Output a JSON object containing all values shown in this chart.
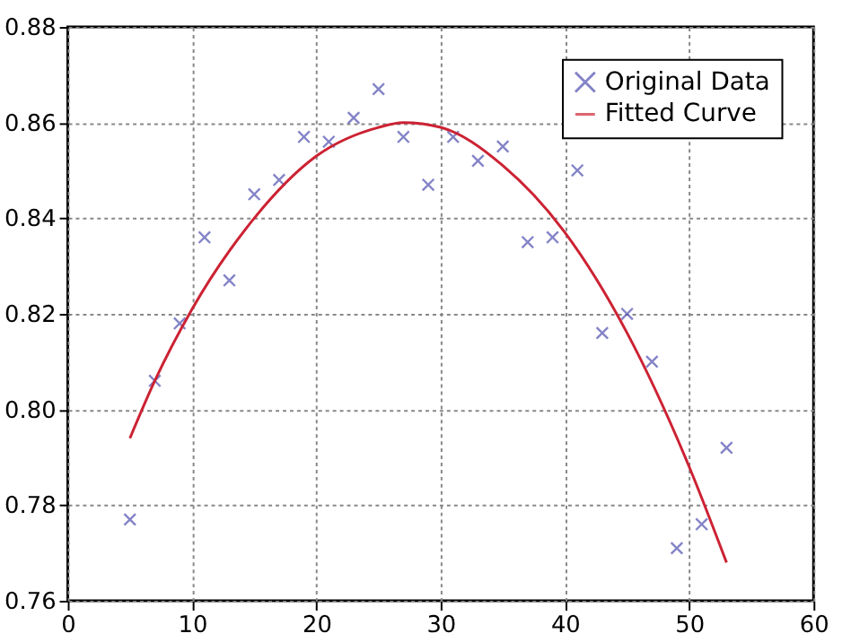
{
  "chart_data": {
    "type": "scatter",
    "xlim": [
      0,
      60
    ],
    "xticks": [
      0,
      10,
      20,
      30,
      40,
      50,
      60
    ],
    "ylim": [
      0.76,
      0.88
    ],
    "yticks": [
      {
        "value": 0.76,
        "label": "0.76"
      },
      {
        "value": 0.78,
        "label": "0.78"
      },
      {
        "value": 0.8,
        "label": "0.80"
      },
      {
        "value": 0.82,
        "label": "0.82"
      },
      {
        "value": 0.84,
        "label": "0.84"
      },
      {
        "value": 0.86,
        "label": "0.86"
      },
      {
        "value": 0.88,
        "label": "0.88"
      }
    ],
    "grid": true,
    "legend": "top right",
    "series": [
      {
        "name": "Original Data",
        "marker": "cross",
        "color": "#5050b0",
        "x": [
          5,
          7,
          9,
          11,
          13,
          15,
          17,
          19,
          21,
          23,
          25,
          27,
          29,
          31,
          33,
          35,
          37,
          39,
          41,
          43,
          45,
          47,
          49,
          51,
          53
        ],
        "values": [
          0.777,
          0.806,
          0.818,
          0.836,
          0.827,
          0.845,
          0.848,
          0.857,
          0.856,
          0.861,
          0.867,
          0.857,
          0.847,
          0.857,
          0.852,
          0.855,
          0.835,
          0.836,
          0.85,
          0.816,
          0.82,
          0.81,
          0.771,
          0.776,
          0.792
        ]
      },
      {
        "name": "Fitted Curve",
        "type": "line",
        "marker": "none",
        "line_style": "solid",
        "color": "#cc2233",
        "x": [
          5,
          7,
          10,
          15,
          20,
          25,
          27,
          30,
          35,
          40,
          45,
          50,
          53
        ],
        "values": [
          0.794,
          0.806,
          0.821,
          0.84,
          0.853,
          0.859,
          0.86,
          0.859,
          0.851,
          0.837,
          0.816,
          0.788,
          0.768
        ]
      }
    ]
  }
}
